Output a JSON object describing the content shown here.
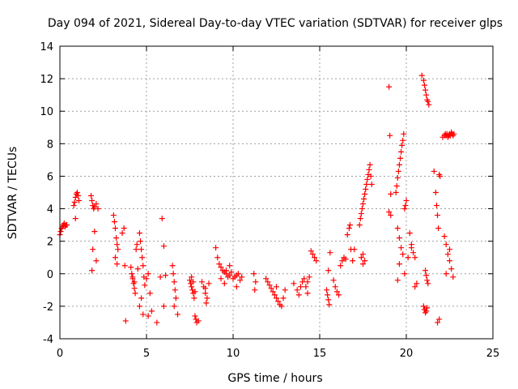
{
  "chart_data": {
    "type": "scatter",
    "title": "Day 094 of 2021, Sidereal Day-to-day VTEC variation (SDTVAR) for receiver glps",
    "xlabel": "GPS time / hours",
    "ylabel": "SDTVAR / TECUs",
    "xlim": [
      0,
      25
    ],
    "ylim": [
      -4,
      14
    ],
    "xticks": [
      0,
      5,
      10,
      15,
      20,
      25
    ],
    "yticks": [
      -4,
      -2,
      0,
      2,
      4,
      6,
      8,
      10,
      12,
      14
    ],
    "xtick_labels": [
      "0",
      "5",
      "10",
      "15",
      "20",
      "25"
    ],
    "ytick_labels": [
      "-4",
      "-2",
      "0",
      "2",
      "4",
      "6",
      "8",
      "10",
      "12",
      "14"
    ],
    "grid": true,
    "marker": "plus",
    "color": "#ff0000",
    "series": [
      {
        "name": "SDTVAR",
        "x": [
          0.0,
          0.05,
          0.1,
          0.15,
          0.2,
          0.25,
          0.3,
          0.35,
          0.4,
          0.8,
          0.85,
          0.9,
          0.95,
          1.0,
          1.05,
          1.1,
          0.9,
          1.8,
          1.85,
          1.9,
          1.95,
          2.0,
          2.1,
          2.2,
          1.9,
          1.85,
          2.1,
          2.0,
          3.1,
          3.15,
          3.2,
          3.25,
          3.3,
          3.35,
          3.2,
          3.3,
          3.6,
          3.7,
          3.75,
          3.8,
          4.1,
          4.15,
          4.2,
          4.25,
          4.3,
          4.35,
          4.4,
          4.45,
          4.5,
          4.3,
          4.2,
          4.6,
          4.65,
          4.7,
          4.75,
          4.8,
          4.85,
          4.9,
          4.7,
          4.6,
          4.8,
          5.0,
          5.1,
          5.2,
          5.1,
          5.3,
          5.6,
          5.8,
          5.9,
          6.0,
          6.1,
          6.0,
          6.5,
          6.55,
          6.6,
          6.65,
          6.7,
          6.8,
          6.6,
          7.5,
          7.55,
          7.6,
          7.65,
          7.7,
          7.75,
          7.8,
          7.85,
          7.9,
          8.0,
          7.6,
          7.7,
          7.8,
          8.2,
          8.3,
          8.4,
          8.5,
          8.45,
          8.4,
          8.6,
          9.0,
          9.1,
          9.2,
          9.3,
          9.4,
          9.5,
          9.6,
          9.7,
          9.8,
          9.9,
          10.0,
          10.1,
          10.2,
          10.3,
          10.4,
          10.5,
          9.5,
          9.8,
          10.2,
          9.3,
          9.6,
          11.2,
          11.3,
          11.25,
          11.9,
          12.0,
          12.1,
          12.2,
          12.3,
          12.4,
          12.5,
          12.6,
          12.7,
          12.8,
          12.9,
          13.0,
          12.5,
          13.5,
          13.7,
          13.9,
          14.0,
          14.1,
          14.2,
          14.3,
          14.4,
          14.5,
          14.6,
          14.7,
          14.8,
          13.8,
          14.3,
          15.4,
          15.45,
          15.5,
          15.55,
          15.6,
          15.5,
          15.8,
          15.9,
          16.0,
          16.1,
          16.2,
          16.3,
          16.4,
          16.5,
          16.6,
          16.7,
          16.75,
          16.8,
          16.9,
          17.0,
          17.3,
          17.35,
          17.4,
          17.45,
          17.5,
          17.55,
          17.6,
          17.65,
          17.7,
          17.75,
          17.8,
          17.85,
          17.9,
          17.95,
          18.0,
          17.4,
          17.5,
          17.6,
          17.5,
          19.0,
          19.05,
          19.1,
          19.0,
          19.1,
          19.4,
          19.45,
          19.5,
          19.55,
          19.6,
          19.65,
          19.7,
          19.75,
          19.8,
          19.85,
          19.9,
          19.95,
          20.0,
          19.5,
          19.6,
          19.7,
          19.8,
          19.6,
          19.5,
          19.9,
          20.1,
          20.2,
          20.3,
          20.4,
          20.5,
          20.6,
          20.3,
          20.5,
          20.9,
          21.0,
          21.05,
          21.1,
          21.15,
          21.2,
          21.25,
          21.3,
          21.0,
          21.05,
          21.1,
          21.15,
          21.2,
          21.1,
          21.15,
          21.2,
          21.25,
          21.6,
          21.7,
          21.75,
          21.8,
          21.85,
          21.9,
          21.95,
          21.8,
          21.9,
          22.1,
          22.2,
          22.25,
          22.3,
          22.35,
          22.4,
          22.45,
          22.5,
          22.55,
          22.6,
          22.65,
          22.7,
          22.75,
          22.2,
          22.3,
          22.4,
          22.5,
          22.6,
          22.7,
          22.3,
          22.5
        ],
        "y": [
          2.4,
          2.6,
          2.8,
          2.9,
          3.0,
          3.1,
          2.9,
          3.0,
          3.0,
          4.2,
          4.4,
          4.7,
          4.9,
          5.0,
          4.8,
          4.5,
          3.4,
          4.8,
          4.5,
          4.2,
          4.0,
          4.1,
          4.3,
          4.0,
          1.5,
          0.2,
          0.8,
          2.6,
          3.6,
          3.2,
          2.8,
          2.2,
          1.8,
          1.5,
          1.0,
          0.6,
          2.5,
          2.8,
          0.5,
          -2.9,
          0.4,
          0.0,
          -0.3,
          -0.6,
          -0.9,
          -1.2,
          1.5,
          1.8,
          0.3,
          -0.5,
          -0.2,
          2.5,
          2.0,
          1.5,
          1.0,
          0.5,
          -0.2,
          -0.7,
          -1.5,
          -2.0,
          -2.5,
          -0.3,
          0.0,
          -1.2,
          -2.6,
          -2.3,
          -3.0,
          -0.2,
          3.4,
          1.7,
          -0.1,
          -2.0,
          0.5,
          0.0,
          -0.5,
          -1.0,
          -1.5,
          -2.5,
          -2.0,
          -0.4,
          -0.6,
          -0.8,
          -1.0,
          -1.2,
          -1.5,
          -2.6,
          -2.8,
          -3.0,
          -2.9,
          -0.2,
          -0.5,
          -1.1,
          -0.5,
          -0.8,
          -1.2,
          -1.5,
          -1.8,
          -0.9,
          -0.6,
          1.6,
          1.0,
          0.6,
          0.4,
          0.2,
          0.1,
          0.0,
          -0.2,
          -0.1,
          0.1,
          -0.3,
          -0.2,
          -0.1,
          0.0,
          -0.4,
          -0.2,
          -0.6,
          0.5,
          -0.8,
          -0.3,
          0.2,
          0.0,
          -0.5,
          -1.0,
          -0.3,
          -0.5,
          -0.7,
          -0.9,
          -1.1,
          -1.3,
          -1.5,
          -1.7,
          -1.9,
          -2.0,
          -1.5,
          -1.0,
          -0.8,
          -0.6,
          -1.0,
          -0.8,
          -0.5,
          -0.3,
          -0.8,
          -0.5,
          -0.2,
          1.4,
          1.2,
          1.0,
          0.8,
          -1.3,
          -1.2,
          -1.0,
          -1.3,
          -1.6,
          -1.9,
          1.3,
          0.2,
          -0.4,
          -0.8,
          -1.1,
          -1.3,
          0.5,
          0.8,
          1.0,
          0.9,
          2.4,
          2.8,
          3.0,
          1.5,
          0.8,
          1.5,
          3.0,
          3.4,
          3.7,
          4.0,
          4.3,
          4.6,
          4.9,
          5.2,
          5.5,
          5.8,
          6.1,
          6.4,
          6.7,
          6.0,
          5.5,
          1.0,
          0.6,
          0.8,
          1.2,
          11.5,
          8.5,
          4.9,
          3.8,
          3.6,
          5.0,
          5.4,
          5.9,
          6.3,
          6.7,
          7.1,
          7.5,
          7.9,
          8.2,
          8.6,
          4.0,
          4.2,
          4.5,
          2.8,
          2.2,
          1.6,
          1.2,
          0.6,
          -0.4,
          0.0,
          1.0,
          2.5,
          1.8,
          1.3,
          1.0,
          -0.6,
          1.6,
          -0.8,
          12.2,
          11.9,
          11.6,
          11.3,
          11.0,
          10.7,
          10.6,
          10.4,
          -2.0,
          -2.2,
          -2.4,
          -2.3,
          -2.1,
          0.2,
          -0.1,
          -0.4,
          -0.6,
          6.3,
          5.0,
          4.2,
          3.6,
          2.8,
          6.1,
          6.0,
          -3.0,
          -2.8,
          8.4,
          8.5,
          8.6,
          8.5,
          8.6,
          8.4,
          8.5,
          8.6,
          8.5,
          8.7,
          8.6,
          8.5,
          8.6,
          2.3,
          1.8,
          1.2,
          0.8,
          0.3,
          -0.2,
          0.0,
          1.5
        ]
      }
    ]
  }
}
